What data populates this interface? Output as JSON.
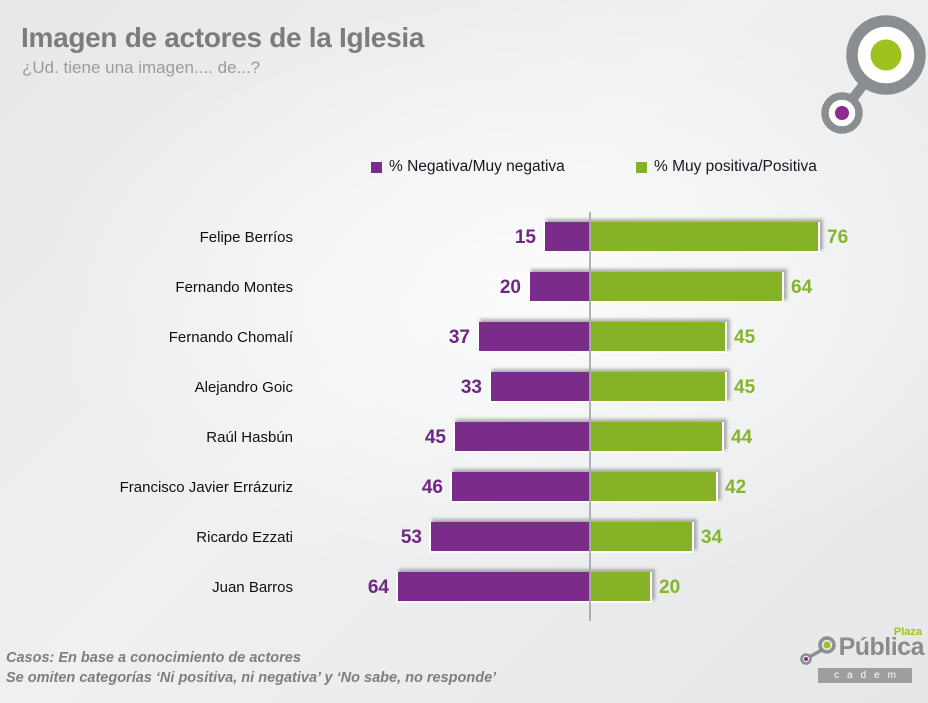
{
  "header": {
    "title": "Imagen de actores de la Iglesia",
    "subtitle": "¿Ud. tiene una imagen.... de...?"
  },
  "chart_data": {
    "type": "bar",
    "orientation": "horizontal-diverging",
    "title": "Imagen de actores de la Iglesia",
    "value_unit": "percent",
    "legend_position": "top",
    "zero_line": true,
    "xlim": [
      -70,
      80
    ],
    "categories": [
      "Felipe Berríos",
      "Fernando Montes",
      "Fernando Chomalí",
      "Alejandro Goic",
      "Raúl Hasbún",
      "Francisco Javier Errázuriz",
      "Ricardo Ezzati",
      "Juan Barros"
    ],
    "series": [
      {
        "name": "% Negativa/Muy negativa",
        "direction": "left",
        "color": "#7b2c8b",
        "label_color": "#6f2781",
        "values": [
          15,
          20,
          37,
          33,
          45,
          46,
          53,
          64
        ]
      },
      {
        "name": "% Muy positiva/Positiva",
        "direction": "right",
        "color": "#85b226",
        "label_color": "#85b52a",
        "values": [
          76,
          64,
          45,
          45,
          44,
          42,
          34,
          20
        ]
      }
    ]
  },
  "footer": {
    "line1": "Casos: En base a conocimiento de actores",
    "line2": "Se omiten categorías ‘Ni positiva, ni negativa’  y ‘No sabe, no responde’"
  },
  "branding": {
    "plaza": "Plaza",
    "publica": "Pública",
    "cadem": "cadem",
    "colors": {
      "green": "#a0c21e",
      "purple": "#8e2b8f",
      "gray": "#8b8e90"
    }
  }
}
